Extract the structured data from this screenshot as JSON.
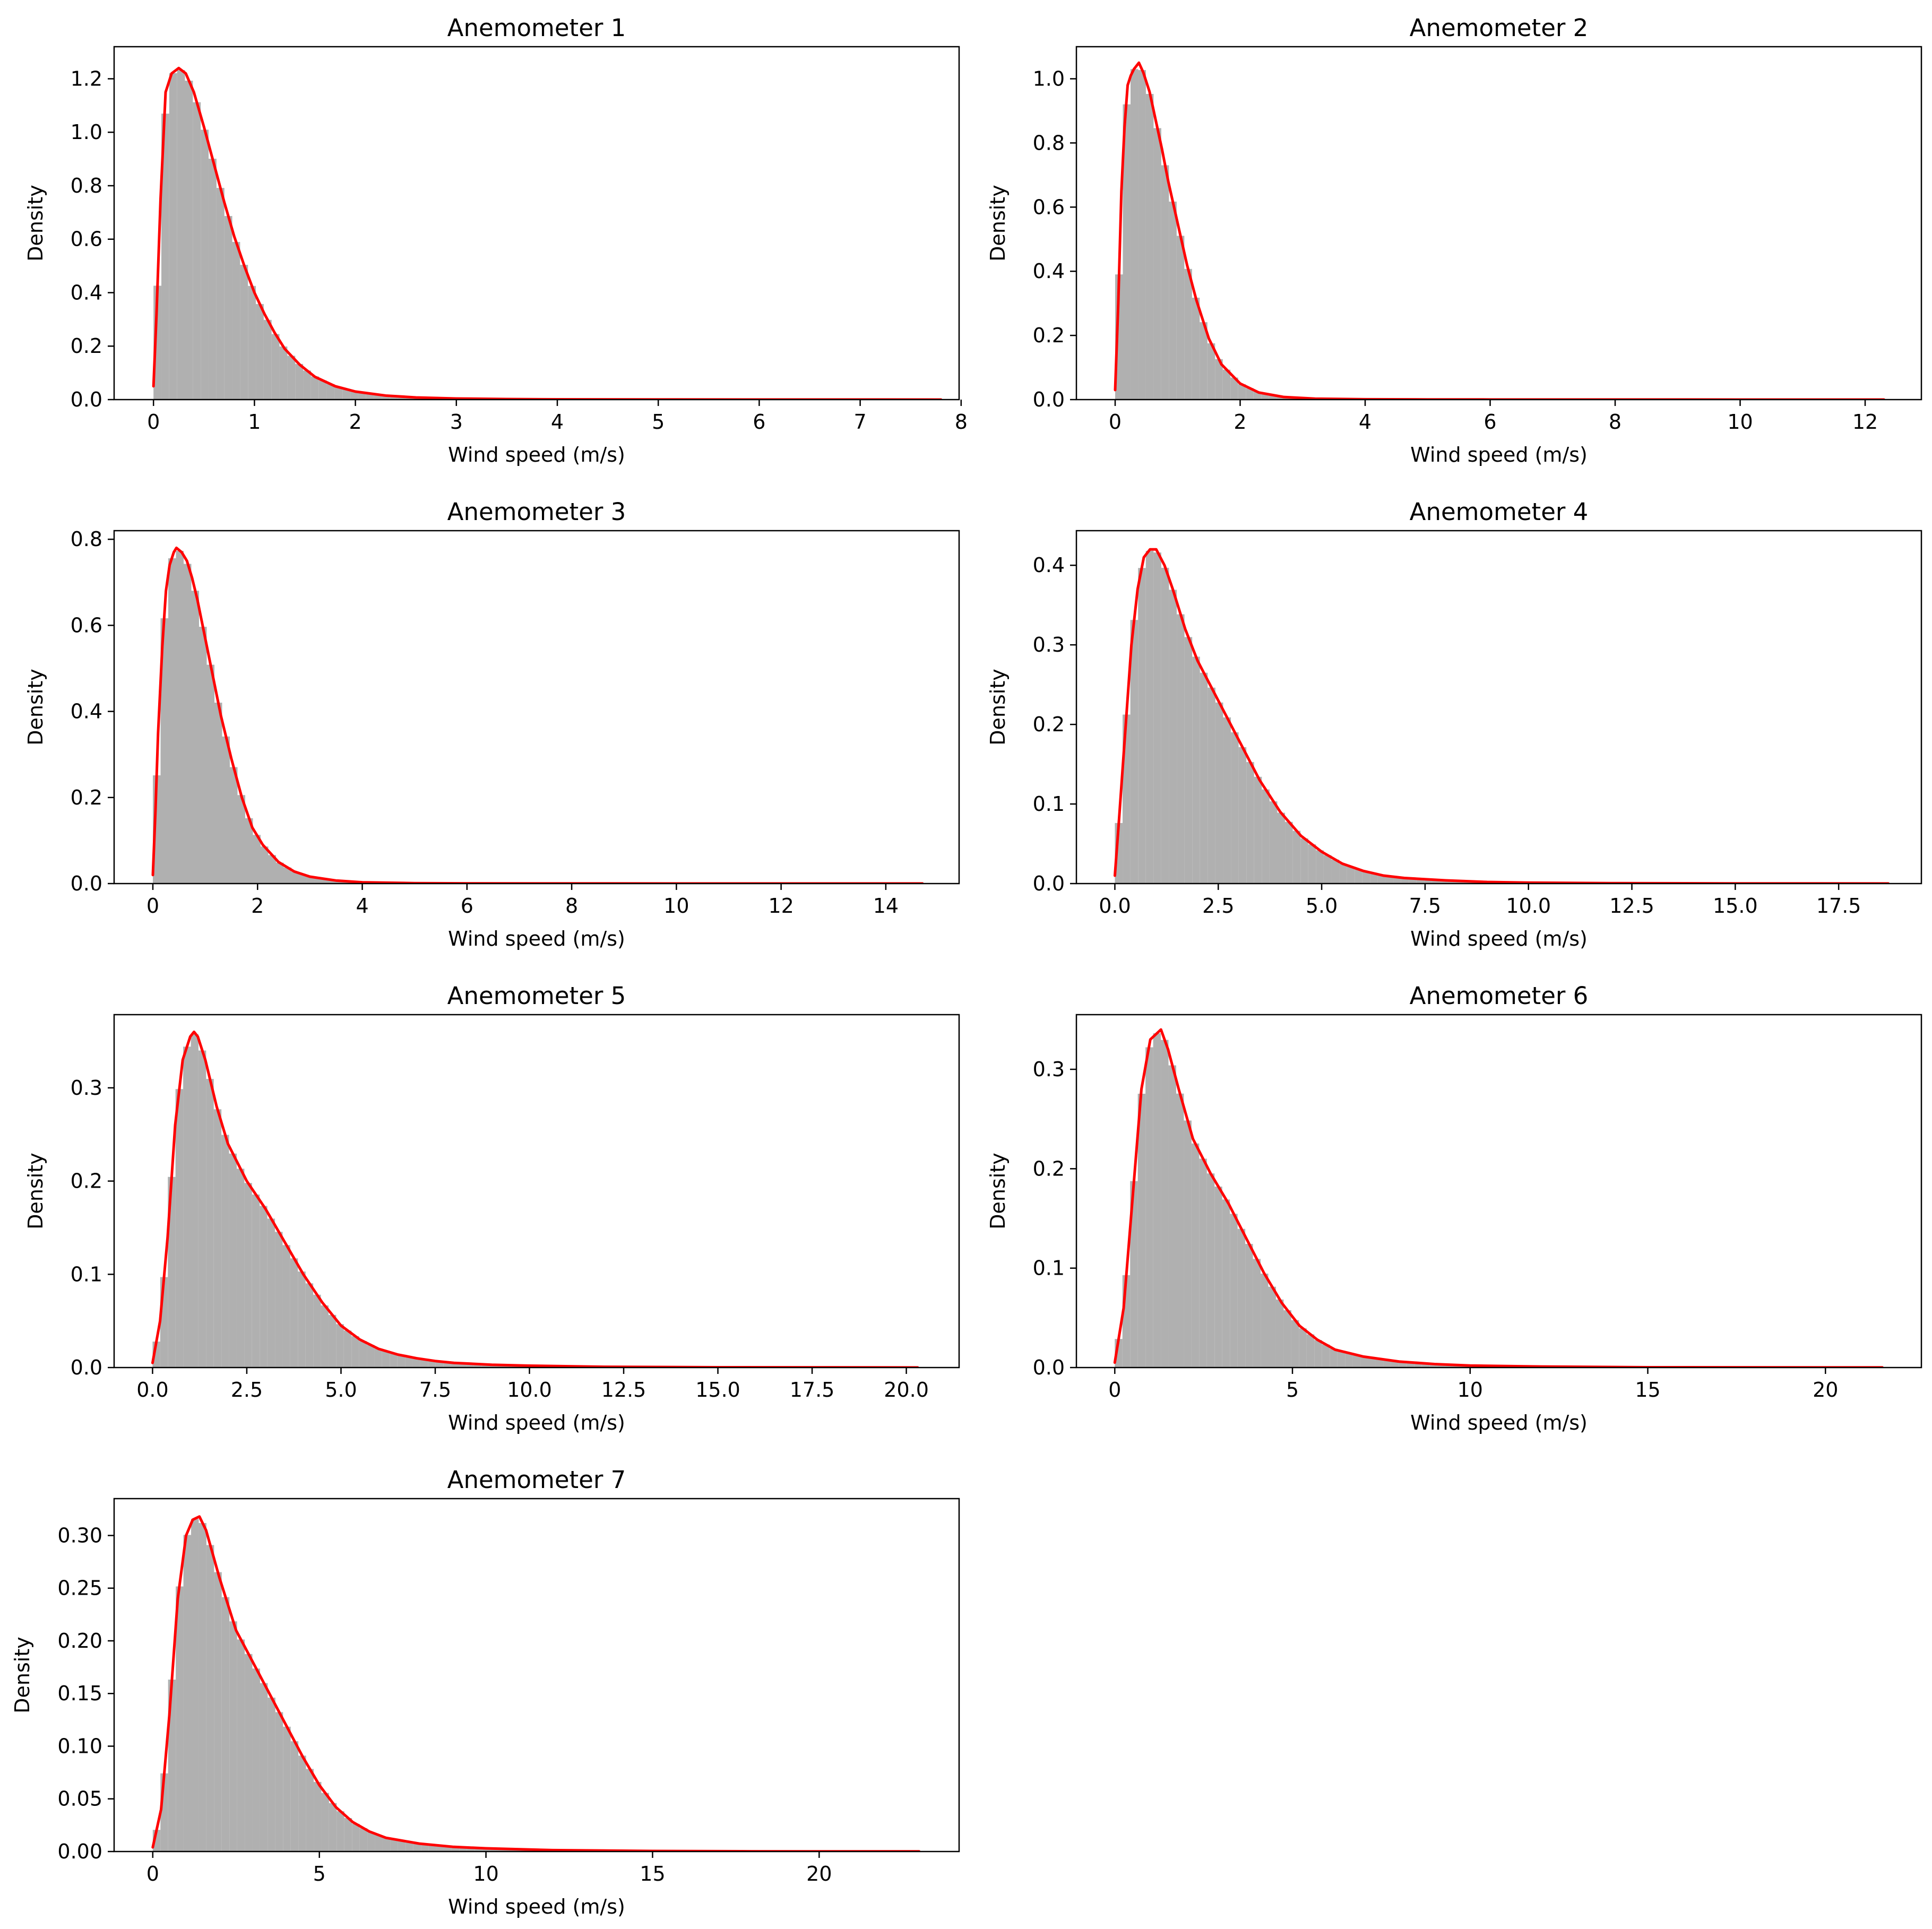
{
  "figure": {
    "colors": {
      "histogram": "#b0b0b0",
      "kde_line": "#ff0000",
      "axes": "#000000",
      "background": "#ffffff"
    },
    "line_color_name": "red",
    "hist_color_name": "gray"
  },
  "chart_data": [
    {
      "type": "histogram+kde",
      "title": "Anemometer 1",
      "xlabel": "Wind speed (m/s)",
      "ylabel": "Density",
      "xlim": [
        -0.39,
        7.98
      ],
      "ylim": [
        0,
        1.32
      ],
      "xticks": [
        0,
        1,
        2,
        3,
        4,
        5,
        6,
        7,
        8
      ],
      "xtick_labels": [
        "0",
        "1",
        "2",
        "3",
        "4",
        "5",
        "6",
        "7",
        "8"
      ],
      "yticks": [
        0,
        0.2,
        0.4,
        0.6,
        0.8,
        1.0,
        1.2
      ],
      "ytick_labels": [
        "0.0",
        "0.2",
        "0.4",
        "0.6",
        "0.8",
        "1.0",
        "1.2"
      ],
      "kde": {
        "x": [
          0,
          0.03,
          0.07,
          0.12,
          0.18,
          0.25,
          0.32,
          0.4,
          0.5,
          0.6,
          0.7,
          0.8,
          0.9,
          1.0,
          1.1,
          1.2,
          1.3,
          1.45,
          1.6,
          1.8,
          2.0,
          2.3,
          2.6,
          3.0,
          3.5,
          4.0,
          5.0,
          6.0,
          7.0,
          7.8
        ],
        "y": [
          0.05,
          0.32,
          0.75,
          1.15,
          1.22,
          1.24,
          1.22,
          1.15,
          1.02,
          0.88,
          0.74,
          0.61,
          0.5,
          0.4,
          0.32,
          0.25,
          0.19,
          0.13,
          0.085,
          0.05,
          0.03,
          0.015,
          0.008,
          0.004,
          0.002,
          0.001,
          0.0005,
          0.0003,
          0.0002,
          0.0001
        ]
      }
    },
    {
      "type": "histogram+kde",
      "title": "Anemometer 2",
      "xlabel": "Wind speed (m/s)",
      "ylabel": "Density",
      "xlim": [
        -0.62,
        12.9
      ],
      "ylim": [
        0,
        1.1
      ],
      "xticks": [
        0,
        2,
        4,
        6,
        8,
        10,
        12
      ],
      "xtick_labels": [
        "0",
        "2",
        "4",
        "6",
        "8",
        "10",
        "12"
      ],
      "yticks": [
        0,
        0.2,
        0.4,
        0.6,
        0.8,
        1.0
      ],
      "ytick_labels": [
        "0.0",
        "0.2",
        "0.4",
        "0.6",
        "0.8",
        "1.0"
      ],
      "kde": {
        "x": [
          0,
          0.05,
          0.1,
          0.15,
          0.2,
          0.25,
          0.3,
          0.38,
          0.45,
          0.55,
          0.65,
          0.75,
          0.85,
          1.0,
          1.15,
          1.3,
          1.5,
          1.7,
          2.0,
          2.3,
          2.7,
          3.2,
          4.0,
          5.0,
          6.0,
          8.0,
          10.0,
          12.3
        ],
        "y": [
          0.03,
          0.3,
          0.65,
          0.85,
          0.98,
          1.01,
          1.03,
          1.05,
          1.02,
          0.96,
          0.87,
          0.78,
          0.68,
          0.55,
          0.42,
          0.31,
          0.19,
          0.11,
          0.05,
          0.022,
          0.008,
          0.003,
          0.001,
          0.0005,
          0.0003,
          0.0002,
          0.0001,
          0.0001
        ]
      }
    },
    {
      "type": "histogram+kde",
      "title": "Anemometer 3",
      "xlabel": "Wind speed (m/s)",
      "ylabel": "Density",
      "xlim": [
        -0.74,
        15.4
      ],
      "ylim": [
        0,
        0.82
      ],
      "xticks": [
        0,
        2,
        4,
        6,
        8,
        10,
        12,
        14
      ],
      "xtick_labels": [
        "0",
        "2",
        "4",
        "6",
        "8",
        "10",
        "12",
        "14"
      ],
      "yticks": [
        0,
        0.2,
        0.4,
        0.6,
        0.8
      ],
      "ytick_labels": [
        "0.0",
        "0.2",
        "0.4",
        "0.6",
        "0.8"
      ],
      "kde": {
        "x": [
          0,
          0.05,
          0.1,
          0.18,
          0.25,
          0.32,
          0.4,
          0.45,
          0.55,
          0.65,
          0.75,
          0.85,
          1.0,
          1.15,
          1.3,
          1.5,
          1.7,
          1.9,
          2.1,
          2.4,
          2.7,
          3.0,
          3.5,
          4.0,
          5.0,
          6.0,
          8.0,
          10.0,
          12.0,
          14.7
        ],
        "y": [
          0.02,
          0.17,
          0.35,
          0.55,
          0.68,
          0.74,
          0.77,
          0.78,
          0.77,
          0.75,
          0.71,
          0.66,
          0.57,
          0.48,
          0.39,
          0.29,
          0.2,
          0.13,
          0.09,
          0.05,
          0.028,
          0.016,
          0.007,
          0.003,
          0.001,
          0.0005,
          0.0003,
          0.0002,
          0.0001,
          0.0001
        ]
      }
    },
    {
      "type": "histogram+kde",
      "title": "Anemometer 4",
      "xlabel": "Wind speed (m/s)",
      "ylabel": "Density",
      "xlim": [
        -0.93,
        19.5
      ],
      "ylim": [
        0,
        0.4435
      ],
      "xticks": [
        0,
        2.5,
        5,
        7.5,
        10,
        12.5,
        15,
        17.5
      ],
      "xtick_labels": [
        "0.0",
        "2.5",
        "5.0",
        "7.5",
        "10.0",
        "12.5",
        "15.0",
        "17.5"
      ],
      "yticks": [
        0,
        0.1,
        0.2,
        0.3,
        0.4
      ],
      "ytick_labels": [
        "0.0",
        "0.1",
        "0.2",
        "0.3",
        "0.4"
      ],
      "kde": {
        "x": [
          0,
          0.1,
          0.25,
          0.4,
          0.55,
          0.7,
          0.85,
          1.0,
          1.2,
          1.4,
          1.7,
          2.0,
          2.5,
          3.0,
          3.5,
          4.0,
          4.5,
          5.0,
          5.5,
          6.0,
          6.5,
          7.0,
          8.0,
          9.0,
          10.0,
          12.0,
          15.0,
          18.7
        ],
        "y": [
          0.01,
          0.08,
          0.19,
          0.3,
          0.37,
          0.41,
          0.42,
          0.42,
          0.4,
          0.37,
          0.32,
          0.28,
          0.23,
          0.18,
          0.13,
          0.09,
          0.06,
          0.04,
          0.025,
          0.016,
          0.01,
          0.007,
          0.004,
          0.002,
          0.0012,
          0.0005,
          0.0002,
          0.0001
        ]
      }
    },
    {
      "type": "histogram+kde",
      "title": "Anemometer 5",
      "xlabel": "Wind speed (m/s)",
      "ylabel": "Density",
      "xlim": [
        -1.02,
        21.4
      ],
      "ylim": [
        0,
        0.3785
      ],
      "xticks": [
        0,
        2.5,
        5,
        7.5,
        10,
        12.5,
        15,
        17.5,
        20
      ],
      "xtick_labels": [
        "0.0",
        "2.5",
        "5.0",
        "7.5",
        "10.0",
        "12.5",
        "15.0",
        "17.5",
        "20.0"
      ],
      "yticks": [
        0,
        0.1,
        0.2,
        0.3
      ],
      "ytick_labels": [
        "0.0",
        "0.1",
        "0.2",
        "0.3"
      ],
      "kde": {
        "x": [
          0,
          0.2,
          0.4,
          0.6,
          0.8,
          1.0,
          1.1,
          1.2,
          1.4,
          1.7,
          2.0,
          2.5,
          3.0,
          3.5,
          4.0,
          4.5,
          5.0,
          5.5,
          6.0,
          6.5,
          7.0,
          7.5,
          8.0,
          9.0,
          10.0,
          12.0,
          15.0,
          18.0,
          20.3
        ],
        "y": [
          0.005,
          0.05,
          0.14,
          0.26,
          0.33,
          0.355,
          0.36,
          0.355,
          0.33,
          0.28,
          0.24,
          0.2,
          0.17,
          0.135,
          0.1,
          0.07,
          0.045,
          0.03,
          0.02,
          0.014,
          0.01,
          0.007,
          0.005,
          0.003,
          0.002,
          0.0008,
          0.0003,
          0.0002,
          0.0001
        ]
      }
    },
    {
      "type": "histogram+kde",
      "title": "Anemometer 6",
      "xlabel": "Wind speed (m/s)",
      "ylabel": "Density",
      "xlim": [
        -1.08,
        22.7
      ],
      "ylim": [
        0,
        0.355
      ],
      "xticks": [
        0,
        5,
        10,
        15,
        20
      ],
      "xtick_labels": [
        "0",
        "5",
        "10",
        "15",
        "20"
      ],
      "yticks": [
        0,
        0.1,
        0.2,
        0.3
      ],
      "ytick_labels": [
        "0.0",
        "0.1",
        "0.2",
        "0.3"
      ],
      "kde": {
        "x": [
          0,
          0.25,
          0.5,
          0.75,
          1.0,
          1.15,
          1.3,
          1.5,
          1.8,
          2.2,
          2.7,
          3.2,
          3.7,
          4.2,
          4.7,
          5.2,
          5.7,
          6.2,
          7.0,
          8.0,
          9.0,
          10.0,
          12.0,
          15.0,
          18.0,
          21.6
        ],
        "y": [
          0.005,
          0.06,
          0.17,
          0.28,
          0.33,
          0.335,
          0.34,
          0.32,
          0.28,
          0.23,
          0.195,
          0.165,
          0.13,
          0.095,
          0.065,
          0.042,
          0.028,
          0.018,
          0.011,
          0.006,
          0.0035,
          0.002,
          0.001,
          0.0003,
          0.0002,
          0.0001
        ]
      }
    },
    {
      "type": "histogram+kde",
      "title": "Anemometer 7",
      "xlabel": "Wind speed (m/s)",
      "ylabel": "Density",
      "xlim": [
        -1.16,
        24.2
      ],
      "ylim": [
        0,
        0.335
      ],
      "xticks": [
        0,
        5,
        10,
        15,
        20
      ],
      "xtick_labels": [
        "0",
        "5",
        "10",
        "15",
        "20"
      ],
      "yticks": [
        0,
        0.05,
        0.1,
        0.15,
        0.2,
        0.25,
        0.3
      ],
      "ytick_labels": [
        "0.00",
        "0.05",
        "0.10",
        "0.15",
        "0.20",
        "0.25",
        "0.30"
      ],
      "kde": {
        "x": [
          0,
          0.25,
          0.5,
          0.75,
          1.0,
          1.2,
          1.4,
          1.6,
          2.0,
          2.5,
          3.0,
          3.5,
          4.0,
          4.5,
          5.0,
          5.5,
          6.0,
          6.5,
          7.0,
          8.0,
          9.0,
          10.0,
          12.0,
          15.0,
          18.0,
          20.0,
          23.0
        ],
        "y": [
          0.004,
          0.04,
          0.13,
          0.24,
          0.3,
          0.315,
          0.318,
          0.305,
          0.26,
          0.21,
          0.18,
          0.15,
          0.12,
          0.09,
          0.063,
          0.042,
          0.028,
          0.019,
          0.013,
          0.0075,
          0.0045,
          0.003,
          0.0013,
          0.0005,
          0.0002,
          0.0001,
          0.0001
        ]
      }
    }
  ]
}
